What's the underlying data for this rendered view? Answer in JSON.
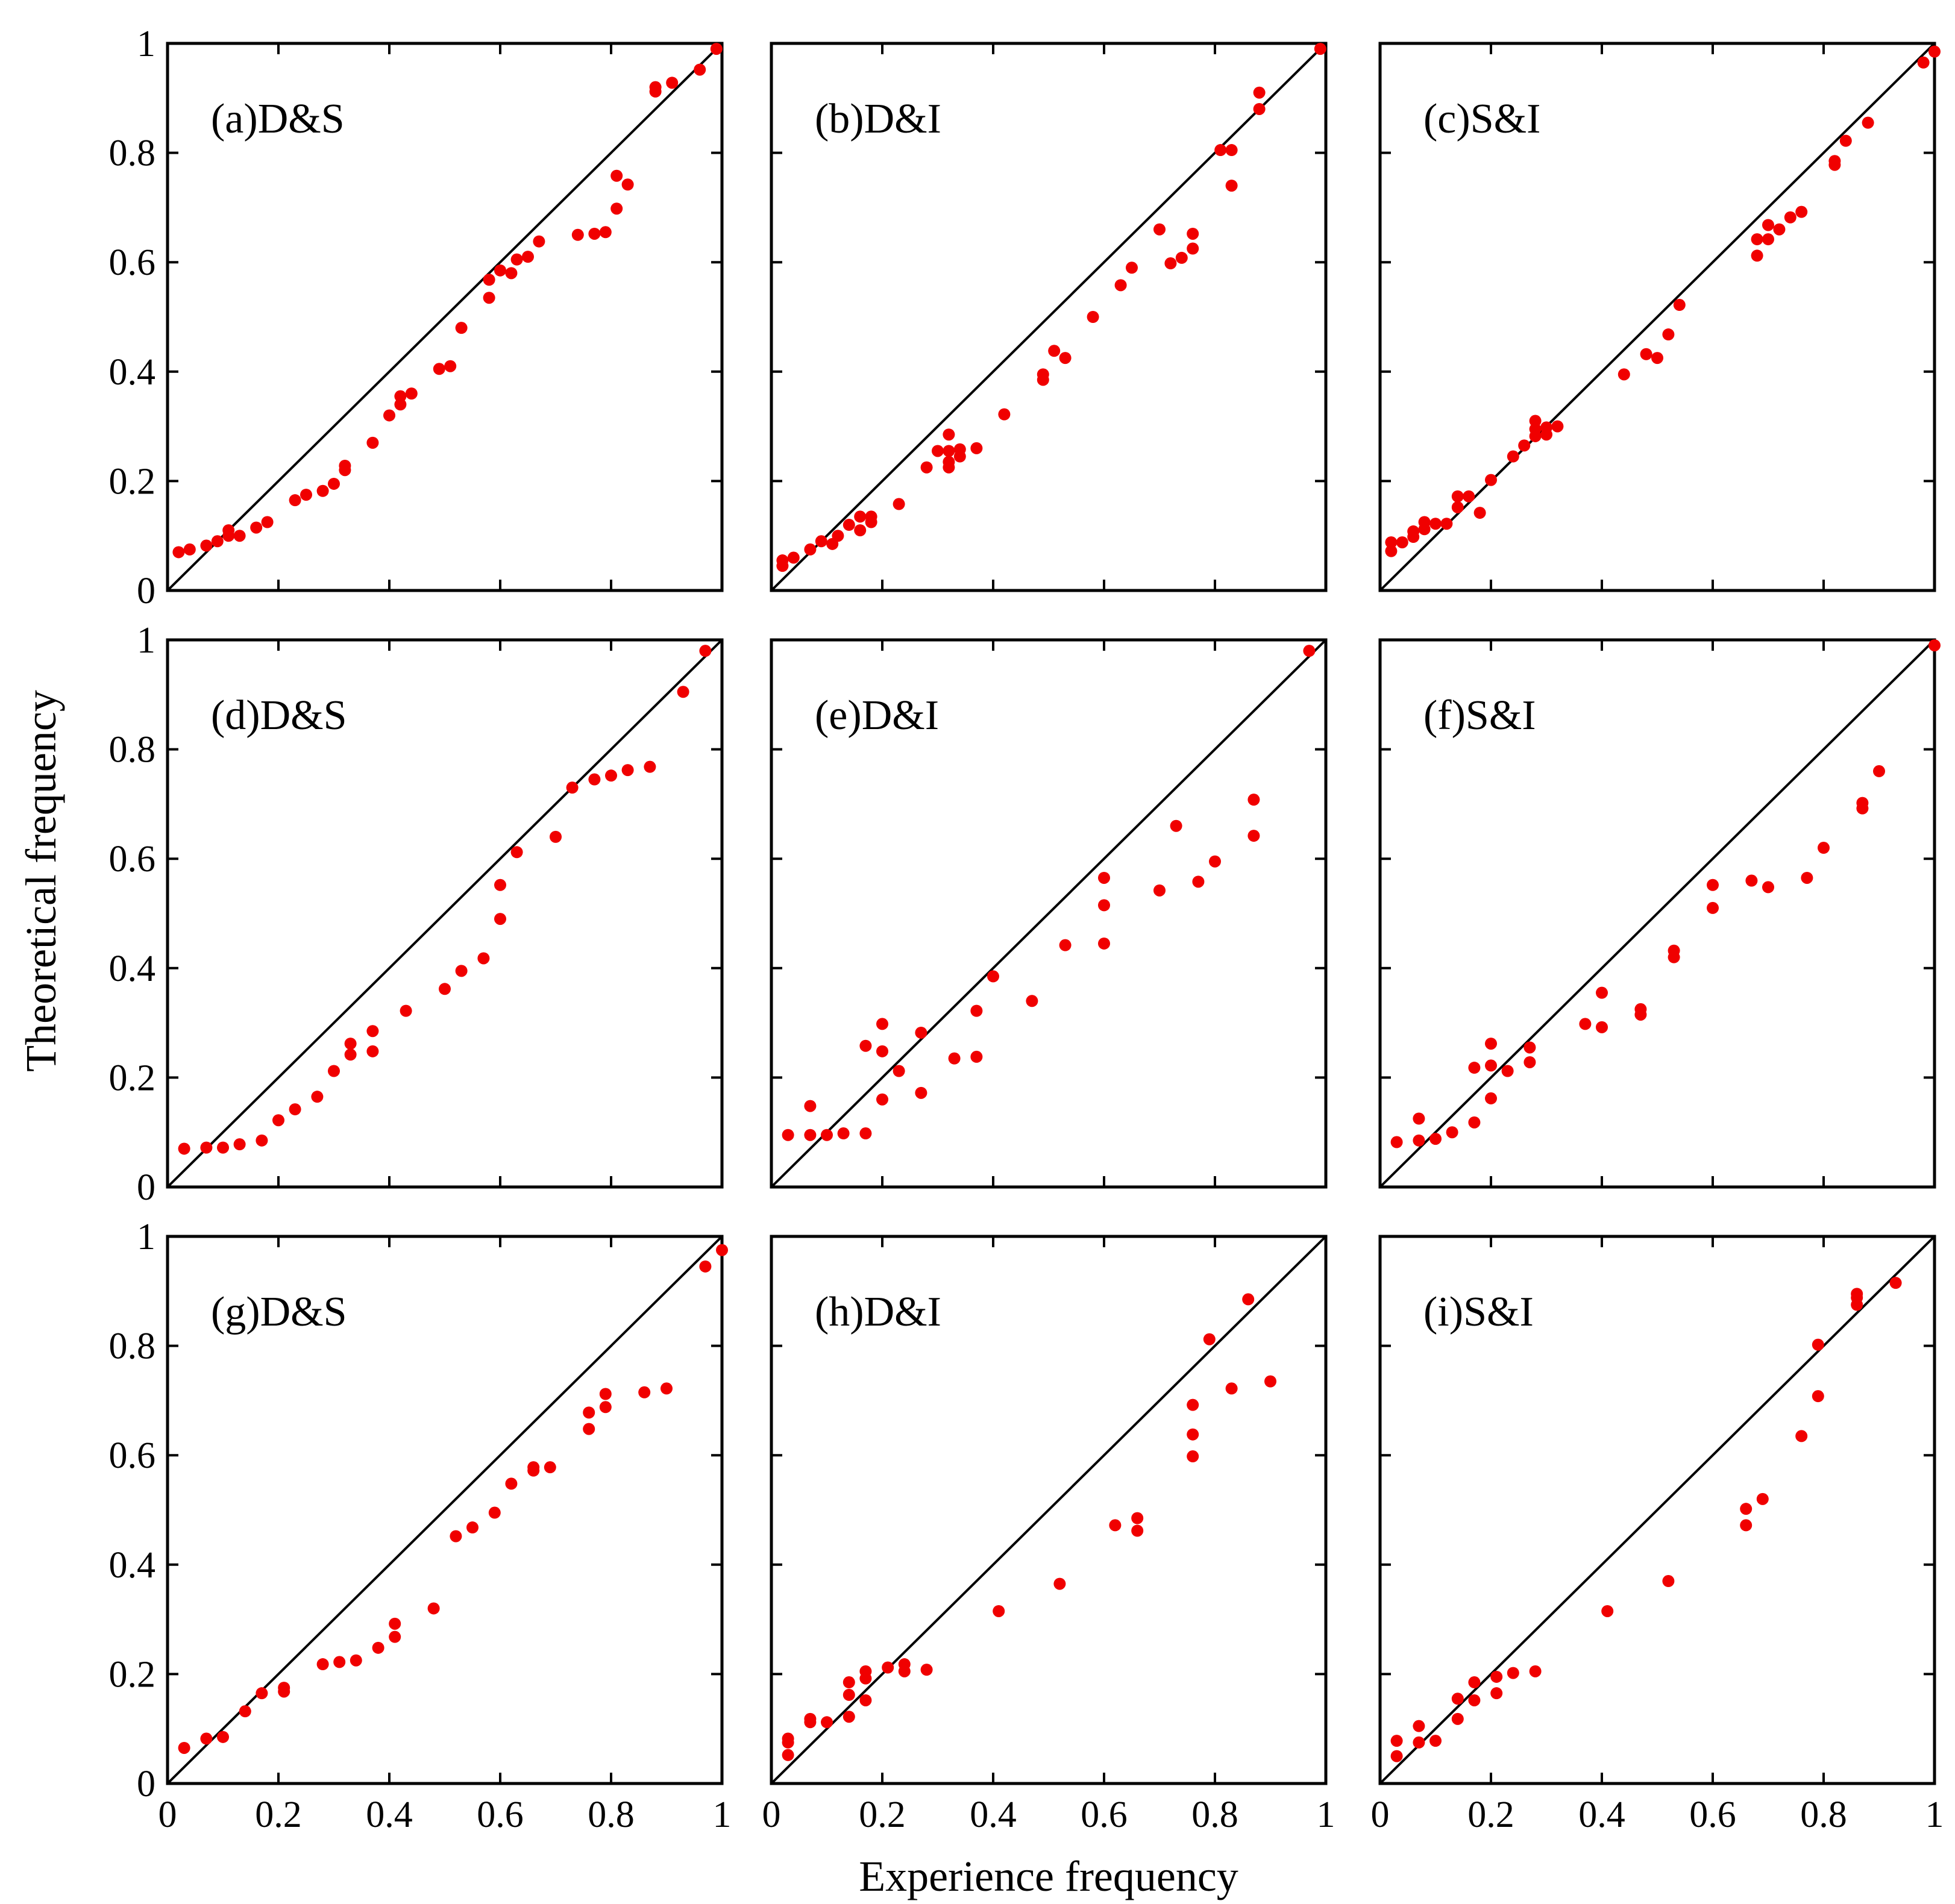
{
  "figure": {
    "xlabel": "Experience frequency",
    "ylabel": "Theoretical frequency"
  },
  "chart_data": [
    {
      "type": "scatter",
      "title": "(a)D&S",
      "xlim": [
        0,
        1
      ],
      "ylim": [
        0,
        1
      ],
      "x_ticks": [
        "0",
        "0.2",
        "0.4",
        "0.6",
        "0.8",
        "1"
      ],
      "y_ticks": [
        "0",
        "0.2",
        "0.4",
        "0.6",
        "0.8",
        "1"
      ],
      "reference_line": "y = x",
      "point_color": "#f00000",
      "points": [
        [
          0.02,
          0.07
        ],
        [
          0.04,
          0.075
        ],
        [
          0.07,
          0.082
        ],
        [
          0.09,
          0.09
        ],
        [
          0.11,
          0.1
        ],
        [
          0.11,
          0.11
        ],
        [
          0.13,
          0.1
        ],
        [
          0.16,
          0.115
        ],
        [
          0.18,
          0.125
        ],
        [
          0.23,
          0.165
        ],
        [
          0.25,
          0.175
        ],
        [
          0.28,
          0.182
        ],
        [
          0.3,
          0.195
        ],
        [
          0.32,
          0.22
        ],
        [
          0.32,
          0.228
        ],
        [
          0.37,
          0.27
        ],
        [
          0.4,
          0.32
        ],
        [
          0.42,
          0.34
        ],
        [
          0.42,
          0.355
        ],
        [
          0.44,
          0.36
        ],
        [
          0.49,
          0.405
        ],
        [
          0.51,
          0.41
        ],
        [
          0.53,
          0.48
        ],
        [
          0.58,
          0.535
        ],
        [
          0.58,
          0.568
        ],
        [
          0.6,
          0.585
        ],
        [
          0.62,
          0.58
        ],
        [
          0.63,
          0.605
        ],
        [
          0.65,
          0.61
        ],
        [
          0.67,
          0.638
        ],
        [
          0.74,
          0.65
        ],
        [
          0.77,
          0.652
        ],
        [
          0.79,
          0.655
        ],
        [
          0.81,
          0.698
        ],
        [
          0.81,
          0.758
        ],
        [
          0.83,
          0.742
        ],
        [
          0.88,
          0.912
        ],
        [
          0.88,
          0.92
        ],
        [
          0.91,
          0.928
        ],
        [
          0.96,
          0.952
        ],
        [
          0.99,
          0.99
        ]
      ]
    },
    {
      "type": "scatter",
      "title": "(b)D&I",
      "xlim": [
        0,
        1
      ],
      "ylim": [
        0,
        1
      ],
      "x_ticks": [
        "0",
        "0.2",
        "0.4",
        "0.6",
        "0.8",
        "1"
      ],
      "y_ticks": [
        "0",
        "0.2",
        "0.4",
        "0.6",
        "0.8",
        "1"
      ],
      "reference_line": "y = x",
      "point_color": "#f00000",
      "points": [
        [
          0.02,
          0.045
        ],
        [
          0.02,
          0.055
        ],
        [
          0.04,
          0.06
        ],
        [
          0.07,
          0.075
        ],
        [
          0.09,
          0.09
        ],
        [
          0.11,
          0.085
        ],
        [
          0.12,
          0.1
        ],
        [
          0.14,
          0.12
        ],
        [
          0.16,
          0.11
        ],
        [
          0.16,
          0.135
        ],
        [
          0.18,
          0.125
        ],
        [
          0.18,
          0.135
        ],
        [
          0.23,
          0.158
        ],
        [
          0.28,
          0.225
        ],
        [
          0.3,
          0.255
        ],
        [
          0.32,
          0.225
        ],
        [
          0.32,
          0.235
        ],
        [
          0.32,
          0.255
        ],
        [
          0.32,
          0.285
        ],
        [
          0.34,
          0.245
        ],
        [
          0.34,
          0.258
        ],
        [
          0.37,
          0.26
        ],
        [
          0.42,
          0.322
        ],
        [
          0.49,
          0.385
        ],
        [
          0.49,
          0.395
        ],
        [
          0.51,
          0.438
        ],
        [
          0.53,
          0.425
        ],
        [
          0.58,
          0.5
        ],
        [
          0.63,
          0.558
        ],
        [
          0.65,
          0.59
        ],
        [
          0.7,
          0.66
        ],
        [
          0.72,
          0.598
        ],
        [
          0.74,
          0.608
        ],
        [
          0.76,
          0.625
        ],
        [
          0.76,
          0.652
        ],
        [
          0.81,
          0.805
        ],
        [
          0.83,
          0.74
        ],
        [
          0.83,
          0.805
        ],
        [
          0.88,
          0.88
        ],
        [
          0.88,
          0.91
        ],
        [
          0.99,
          0.99
        ]
      ]
    },
    {
      "type": "scatter",
      "title": "(c)S&I",
      "xlim": [
        0,
        1
      ],
      "ylim": [
        0,
        1
      ],
      "x_ticks": [
        "0",
        "0.2",
        "0.4",
        "0.6",
        "0.8",
        "1"
      ],
      "y_ticks": [
        "0",
        "0.2",
        "0.4",
        "0.6",
        "0.8",
        "1"
      ],
      "reference_line": "y = x",
      "point_color": "#f00000",
      "points": [
        [
          0.02,
          0.072
        ],
        [
          0.02,
          0.088
        ],
        [
          0.04,
          0.088
        ],
        [
          0.06,
          0.098
        ],
        [
          0.06,
          0.108
        ],
        [
          0.08,
          0.112
        ],
        [
          0.08,
          0.125
        ],
        [
          0.1,
          0.122
        ],
        [
          0.12,
          0.122
        ],
        [
          0.14,
          0.152
        ],
        [
          0.14,
          0.172
        ],
        [
          0.16,
          0.172
        ],
        [
          0.18,
          0.142
        ],
        [
          0.2,
          0.202
        ],
        [
          0.24,
          0.245
        ],
        [
          0.26,
          0.265
        ],
        [
          0.28,
          0.282
        ],
        [
          0.28,
          0.295
        ],
        [
          0.28,
          0.31
        ],
        [
          0.3,
          0.285
        ],
        [
          0.3,
          0.298
        ],
        [
          0.32,
          0.3
        ],
        [
          0.44,
          0.395
        ],
        [
          0.48,
          0.432
        ],
        [
          0.5,
          0.425
        ],
        [
          0.52,
          0.468
        ],
        [
          0.54,
          0.522
        ],
        [
          0.68,
          0.612
        ],
        [
          0.68,
          0.642
        ],
        [
          0.7,
          0.642
        ],
        [
          0.7,
          0.668
        ],
        [
          0.72,
          0.66
        ],
        [
          0.74,
          0.682
        ],
        [
          0.76,
          0.692
        ],
        [
          0.82,
          0.778
        ],
        [
          0.82,
          0.785
        ],
        [
          0.84,
          0.822
        ],
        [
          0.88,
          0.855
        ],
        [
          0.98,
          0.965
        ],
        [
          1.0,
          0.985
        ]
      ]
    },
    {
      "type": "scatter",
      "title": "(d)D&S",
      "xlim": [
        0,
        1
      ],
      "ylim": [
        0,
        1
      ],
      "x_ticks": [
        "0",
        "0.2",
        "0.4",
        "0.6",
        "0.8",
        "1"
      ],
      "y_ticks": [
        "0",
        "0.2",
        "0.4",
        "0.6",
        "0.8",
        "1"
      ],
      "reference_line": "y = x",
      "point_color": "#f00000",
      "points": [
        [
          0.03,
          0.07
        ],
        [
          0.07,
          0.072
        ],
        [
          0.1,
          0.072
        ],
        [
          0.13,
          0.078
        ],
        [
          0.17,
          0.085
        ],
        [
          0.2,
          0.122
        ],
        [
          0.23,
          0.142
        ],
        [
          0.27,
          0.165
        ],
        [
          0.3,
          0.212
        ],
        [
          0.33,
          0.242
        ],
        [
          0.33,
          0.262
        ],
        [
          0.37,
          0.248
        ],
        [
          0.37,
          0.285
        ],
        [
          0.43,
          0.322
        ],
        [
          0.5,
          0.362
        ],
        [
          0.53,
          0.395
        ],
        [
          0.57,
          0.418
        ],
        [
          0.6,
          0.49
        ],
        [
          0.6,
          0.552
        ],
        [
          0.63,
          0.612
        ],
        [
          0.7,
          0.64
        ],
        [
          0.73,
          0.73
        ],
        [
          0.77,
          0.745
        ],
        [
          0.8,
          0.752
        ],
        [
          0.83,
          0.762
        ],
        [
          0.87,
          0.768
        ],
        [
          0.93,
          0.905
        ],
        [
          0.97,
          0.98
        ]
      ]
    },
    {
      "type": "scatter",
      "title": "(e)D&I",
      "xlim": [
        0,
        1
      ],
      "ylim": [
        0,
        1
      ],
      "x_ticks": [
        "0",
        "0.2",
        "0.4",
        "0.6",
        "0.8",
        "1"
      ],
      "y_ticks": [
        "0",
        "0.2",
        "0.4",
        "0.6",
        "0.8",
        "1"
      ],
      "reference_line": "y = x",
      "point_color": "#f00000",
      "points": [
        [
          0.03,
          0.095
        ],
        [
          0.07,
          0.095
        ],
        [
          0.07,
          0.148
        ],
        [
          0.1,
          0.095
        ],
        [
          0.13,
          0.098
        ],
        [
          0.17,
          0.098
        ],
        [
          0.17,
          0.258
        ],
        [
          0.2,
          0.16
        ],
        [
          0.2,
          0.248
        ],
        [
          0.2,
          0.298
        ],
        [
          0.23,
          0.212
        ],
        [
          0.27,
          0.172
        ],
        [
          0.27,
          0.282
        ],
        [
          0.33,
          0.235
        ],
        [
          0.37,
          0.238
        ],
        [
          0.37,
          0.322
        ],
        [
          0.4,
          0.385
        ],
        [
          0.47,
          0.34
        ],
        [
          0.53,
          0.442
        ],
        [
          0.6,
          0.445
        ],
        [
          0.6,
          0.515
        ],
        [
          0.6,
          0.565
        ],
        [
          0.7,
          0.542
        ],
        [
          0.73,
          0.66
        ],
        [
          0.77,
          0.558
        ],
        [
          0.8,
          0.595
        ],
        [
          0.87,
          0.642
        ],
        [
          0.87,
          0.708
        ],
        [
          0.97,
          0.98
        ]
      ]
    },
    {
      "type": "scatter",
      "title": "(f)S&I",
      "xlim": [
        0,
        1
      ],
      "ylim": [
        0,
        1
      ],
      "x_ticks": [
        "0",
        "0.2",
        "0.4",
        "0.6",
        "0.8",
        "1"
      ],
      "y_ticks": [
        "0",
        "0.2",
        "0.4",
        "0.6",
        "0.8",
        "1"
      ],
      "reference_line": "y = x",
      "point_color": "#f00000",
      "points": [
        [
          0.03,
          0.082
        ],
        [
          0.07,
          0.085
        ],
        [
          0.07,
          0.125
        ],
        [
          0.1,
          0.088
        ],
        [
          0.13,
          0.1
        ],
        [
          0.17,
          0.118
        ],
        [
          0.17,
          0.218
        ],
        [
          0.2,
          0.162
        ],
        [
          0.2,
          0.222
        ],
        [
          0.2,
          0.262
        ],
        [
          0.23,
          0.212
        ],
        [
          0.27,
          0.228
        ],
        [
          0.27,
          0.255
        ],
        [
          0.37,
          0.298
        ],
        [
          0.4,
          0.292
        ],
        [
          0.4,
          0.355
        ],
        [
          0.47,
          0.315
        ],
        [
          0.47,
          0.325
        ],
        [
          0.53,
          0.42
        ],
        [
          0.53,
          0.432
        ],
        [
          0.6,
          0.51
        ],
        [
          0.6,
          0.552
        ],
        [
          0.67,
          0.56
        ],
        [
          0.7,
          0.548
        ],
        [
          0.77,
          0.565
        ],
        [
          0.8,
          0.62
        ],
        [
          0.87,
          0.692
        ],
        [
          0.87,
          0.702
        ],
        [
          0.9,
          0.76
        ],
        [
          1.0,
          0.99
        ]
      ]
    },
    {
      "type": "scatter",
      "title": "(g)D&S",
      "xlim": [
        0,
        1
      ],
      "ylim": [
        0,
        1
      ],
      "x_ticks": [
        "0",
        "0.2",
        "0.4",
        "0.6",
        "0.8",
        "1"
      ],
      "y_ticks": [
        "0",
        "0.2",
        "0.4",
        "0.6",
        "0.8",
        "1"
      ],
      "reference_line": "y = x",
      "point_color": "#f00000",
      "points": [
        [
          0.03,
          0.065
        ],
        [
          0.07,
          0.082
        ],
        [
          0.1,
          0.085
        ],
        [
          0.14,
          0.132
        ],
        [
          0.17,
          0.165
        ],
        [
          0.21,
          0.168
        ],
        [
          0.21,
          0.175
        ],
        [
          0.28,
          0.218
        ],
        [
          0.31,
          0.222
        ],
        [
          0.34,
          0.225
        ],
        [
          0.38,
          0.248
        ],
        [
          0.41,
          0.268
        ],
        [
          0.41,
          0.292
        ],
        [
          0.48,
          0.32
        ],
        [
          0.52,
          0.452
        ],
        [
          0.55,
          0.468
        ],
        [
          0.59,
          0.495
        ],
        [
          0.62,
          0.548
        ],
        [
          0.66,
          0.572
        ],
        [
          0.66,
          0.578
        ],
        [
          0.69,
          0.578
        ],
        [
          0.76,
          0.648
        ],
        [
          0.76,
          0.678
        ],
        [
          0.79,
          0.688
        ],
        [
          0.79,
          0.712
        ],
        [
          0.86,
          0.715
        ],
        [
          0.9,
          0.722
        ],
        [
          0.97,
          0.945
        ],
        [
          1.0,
          0.975
        ]
      ]
    },
    {
      "type": "scatter",
      "title": "(h)D&I",
      "xlim": [
        0,
        1
      ],
      "ylim": [
        0,
        1
      ],
      "x_ticks": [
        "0",
        "0.2",
        "0.4",
        "0.6",
        "0.8",
        "1"
      ],
      "y_ticks": [
        "0",
        "0.2",
        "0.4",
        "0.6",
        "0.8",
        "1"
      ],
      "reference_line": "y = x",
      "point_color": "#f00000",
      "points": [
        [
          0.03,
          0.052
        ],
        [
          0.03,
          0.075
        ],
        [
          0.03,
          0.082
        ],
        [
          0.07,
          0.112
        ],
        [
          0.07,
          0.118
        ],
        [
          0.1,
          0.112
        ],
        [
          0.14,
          0.122
        ],
        [
          0.14,
          0.162
        ],
        [
          0.14,
          0.185
        ],
        [
          0.17,
          0.152
        ],
        [
          0.17,
          0.192
        ],
        [
          0.17,
          0.205
        ],
        [
          0.21,
          0.212
        ],
        [
          0.24,
          0.205
        ],
        [
          0.24,
          0.218
        ],
        [
          0.28,
          0.208
        ],
        [
          0.41,
          0.315
        ],
        [
          0.52,
          0.365
        ],
        [
          0.62,
          0.472
        ],
        [
          0.66,
          0.462
        ],
        [
          0.66,
          0.485
        ],
        [
          0.76,
          0.598
        ],
        [
          0.76,
          0.638
        ],
        [
          0.76,
          0.692
        ],
        [
          0.79,
          0.812
        ],
        [
          0.83,
          0.722
        ],
        [
          0.86,
          0.885
        ],
        [
          0.9,
          0.735
        ]
      ]
    },
    {
      "type": "scatter",
      "title": "(i)S&I",
      "xlim": [
        0,
        1
      ],
      "ylim": [
        0,
        1
      ],
      "x_ticks": [
        "0",
        "0.2",
        "0.4",
        "0.6",
        "0.8",
        "1"
      ],
      "y_ticks": [
        "0",
        "0.2",
        "0.4",
        "0.6",
        "0.8",
        "1"
      ],
      "reference_line": "y = x",
      "point_color": "#f00000",
      "points": [
        [
          0.03,
          0.05
        ],
        [
          0.03,
          0.078
        ],
        [
          0.07,
          0.075
        ],
        [
          0.07,
          0.105
        ],
        [
          0.1,
          0.078
        ],
        [
          0.14,
          0.118
        ],
        [
          0.14,
          0.155
        ],
        [
          0.17,
          0.152
        ],
        [
          0.17,
          0.185
        ],
        [
          0.21,
          0.165
        ],
        [
          0.21,
          0.195
        ],
        [
          0.24,
          0.202
        ],
        [
          0.28,
          0.205
        ],
        [
          0.41,
          0.315
        ],
        [
          0.52,
          0.37
        ],
        [
          0.66,
          0.472
        ],
        [
          0.66,
          0.502
        ],
        [
          0.69,
          0.52
        ],
        [
          0.76,
          0.635
        ],
        [
          0.79,
          0.708
        ],
        [
          0.79,
          0.802
        ],
        [
          0.86,
          0.875
        ],
        [
          0.86,
          0.888
        ],
        [
          0.86,
          0.895
        ],
        [
          0.93,
          0.915
        ]
      ]
    }
  ]
}
